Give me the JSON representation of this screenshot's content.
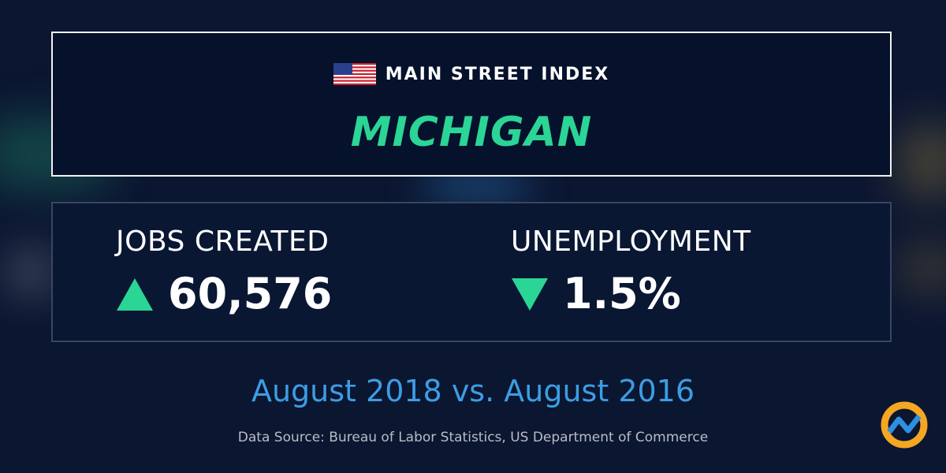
{
  "header": {
    "title": "MAIN STREET INDEX",
    "state": "MICHIGAN"
  },
  "stats": [
    {
      "label": "JOBS CREATED",
      "value": "60,576"
    },
    {
      "label": "UNEMPLOYMENT",
      "value": "1.5%"
    }
  ],
  "period": "August 2018 vs. August 2016",
  "source": "Data Source: Bureau of Labor Statistics, US Department of Commerce"
}
